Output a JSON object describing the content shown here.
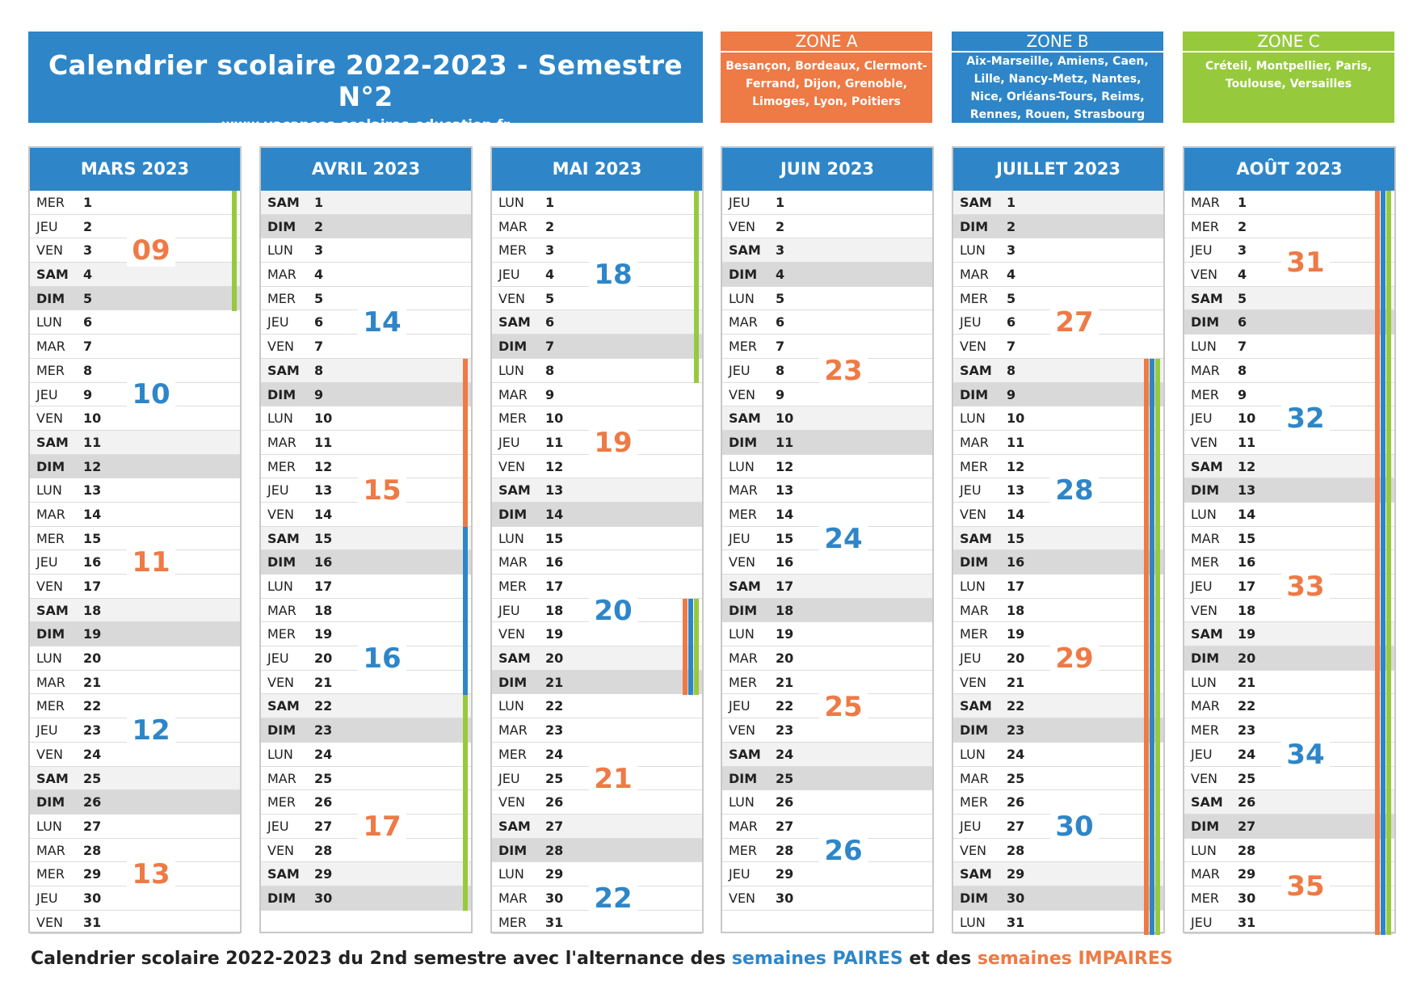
{
  "header": {
    "title": "Calendrier scolaire 2022-2023 - Semestre N°2",
    "website": "www.vacances-scolaires-education.fr"
  },
  "zones": [
    {
      "id": "A",
      "title": "ZONE A",
      "cities": "Besançon, Bordeaux, Clermont-Ferrand, Dijon, Grenoble, Limoges, Lyon, Poitiers",
      "color": "#ee7a45"
    },
    {
      "id": "B",
      "title": "ZONE B",
      "cities": "Aix-Marseille, Amiens, Caen, Lille, Nancy-Metz, Nantes, Nice, Orléans-Tours, Reims, Rennes, Rouen, Strasbourg",
      "color": "#2e86c8"
    },
    {
      "id": "C",
      "title": "ZONE C",
      "cities": "Créteil, Montpellier, Paris, Toulouse, Versailles",
      "color": "#97c93d"
    }
  ],
  "months": [
    {
      "title": "MARS 2023",
      "start_day": 3,
      "days": 31,
      "weeks": [
        {
          "num": "09",
          "from": 1,
          "to": 5,
          "parity": "odd"
        },
        {
          "num": "10",
          "from": 6,
          "to": 12,
          "parity": "even"
        },
        {
          "num": "11",
          "from": 13,
          "to": 19,
          "parity": "odd"
        },
        {
          "num": "12",
          "from": 20,
          "to": 26,
          "parity": "even"
        },
        {
          "num": "13",
          "from": 27,
          "to": 31,
          "parity": "odd"
        }
      ],
      "holidays": [
        {
          "zones": [
            "C"
          ],
          "from": 1,
          "to": 5
        }
      ]
    },
    {
      "title": "AVRIL 2023",
      "start_day": 6,
      "days": 30,
      "weeks": [
        {
          "num": "13",
          "from": 1,
          "to": 2,
          "parity": "odd",
          "label": false
        },
        {
          "num": "14",
          "from": 3,
          "to": 9,
          "parity": "even"
        },
        {
          "num": "15",
          "from": 10,
          "to": 16,
          "parity": "odd"
        },
        {
          "num": "16",
          "from": 17,
          "to": 23,
          "parity": "even"
        },
        {
          "num": "17",
          "from": 24,
          "to": 30,
          "parity": "odd"
        }
      ],
      "holidays": [
        {
          "zones": [
            "A"
          ],
          "from": 8,
          "to": 23
        },
        {
          "zones": [
            "B"
          ],
          "from": 15,
          "to": 30
        },
        {
          "zones": [
            "C"
          ],
          "from": 22,
          "to": 30
        }
      ]
    },
    {
      "title": "MAI 2023",
      "start_day": 1,
      "days": 31,
      "weeks": [
        {
          "num": "18",
          "from": 1,
          "to": 7,
          "parity": "even"
        },
        {
          "num": "19",
          "from": 8,
          "to": 14,
          "parity": "odd"
        },
        {
          "num": "20",
          "from": 15,
          "to": 21,
          "parity": "even"
        },
        {
          "num": "21",
          "from": 22,
          "to": 28,
          "parity": "odd"
        },
        {
          "num": "22",
          "from": 29,
          "to": 31,
          "parity": "even"
        }
      ],
      "holidays": [
        {
          "zones": [
            "B"
          ],
          "from": 1,
          "to": 1
        },
        {
          "zones": [
            "C"
          ],
          "from": 1,
          "to": 8
        },
        {
          "zones": [
            "A",
            "B",
            "C"
          ],
          "from": 18,
          "to": 21
        }
      ]
    },
    {
      "title": "JUIN 2023",
      "start_day": 4,
      "days": 30,
      "weeks": [
        {
          "num": "22",
          "from": 1,
          "to": 4,
          "parity": "even",
          "label": false
        },
        {
          "num": "23",
          "from": 5,
          "to": 11,
          "parity": "odd"
        },
        {
          "num": "24",
          "from": 12,
          "to": 18,
          "parity": "even"
        },
        {
          "num": "25",
          "from": 19,
          "to": 25,
          "parity": "odd"
        },
        {
          "num": "26",
          "from": 26,
          "to": 30,
          "parity": "even"
        }
      ],
      "holidays": []
    },
    {
      "title": "JUILLET 2023",
      "start_day": 6,
      "days": 31,
      "weeks": [
        {
          "num": "26",
          "from": 1,
          "to": 2,
          "parity": "even",
          "label": false
        },
        {
          "num": "27",
          "from": 3,
          "to": 9,
          "parity": "odd"
        },
        {
          "num": "28",
          "from": 10,
          "to": 16,
          "parity": "even"
        },
        {
          "num": "29",
          "from": 17,
          "to": 23,
          "parity": "odd"
        },
        {
          "num": "30",
          "from": 24,
          "to": 30,
          "parity": "even"
        },
        {
          "num": "31",
          "from": 31,
          "to": 31,
          "parity": "odd",
          "label": false
        }
      ],
      "holidays": [
        {
          "zones": [
            "A",
            "B",
            "C"
          ],
          "from": 8,
          "to": 31
        }
      ]
    },
    {
      "title": "AOÛT 2023",
      "start_day": 2,
      "days": 31,
      "weeks": [
        {
          "num": "31",
          "from": 1,
          "to": 6,
          "parity": "odd"
        },
        {
          "num": "32",
          "from": 7,
          "to": 13,
          "parity": "even"
        },
        {
          "num": "33",
          "from": 14,
          "to": 20,
          "parity": "odd"
        },
        {
          "num": "34",
          "from": 21,
          "to": 27,
          "parity": "even"
        },
        {
          "num": "35",
          "from": 28,
          "to": 31,
          "parity": "odd"
        }
      ],
      "holidays": [
        {
          "zones": [
            "A",
            "B",
            "C"
          ],
          "from": 1,
          "to": 31
        }
      ]
    }
  ],
  "day_names": [
    "LUN",
    "MAR",
    "MER",
    "JEU",
    "VEN",
    "SAM",
    "DIM"
  ],
  "footer": {
    "prefix": "Calendrier scolaire 2022-2023 du 2nd semestre avec l'alternance des ",
    "pair": "semaines PAIRES",
    "middle": " et des ",
    "impair": "semaines IMPAIRES"
  }
}
